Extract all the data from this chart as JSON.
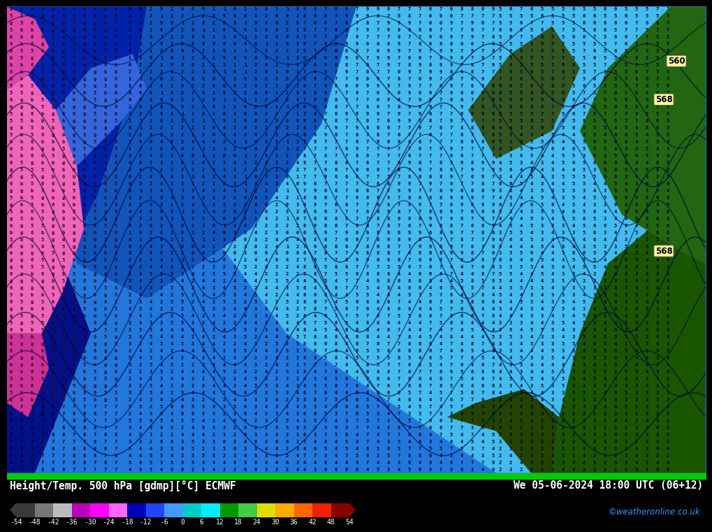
{
  "title_left": "Height/Temp. 500 hPa [gdmp][°C] ECMWF",
  "title_right": "We 05-06-2024 18:00 UTC (06+12)",
  "watermark": "©weatheronline.co.uk",
  "colorbar_levels": [
    -54,
    -48,
    -42,
    -36,
    -30,
    -24,
    -18,
    -12,
    -6,
    0,
    6,
    12,
    18,
    24,
    30,
    36,
    42,
    48,
    54
  ],
  "bg_color": "#1155cc",
  "footer_bg": "#000000",
  "header_bar_color": "#00cc00",
  "fig_width": 10.0,
  "fig_height": 7.33,
  "colorbar_colors_18": [
    "#3a3a3a",
    "#777777",
    "#bbbbbb",
    "#bb00bb",
    "#ff00ff",
    "#ff66ff",
    "#0000bb",
    "#2244ff",
    "#4499ff",
    "#00cccc",
    "#00eeff",
    "#009900",
    "#44cc44",
    "#dddd00",
    "#ffaa00",
    "#ff6600",
    "#ee2200",
    "#880000"
  ]
}
